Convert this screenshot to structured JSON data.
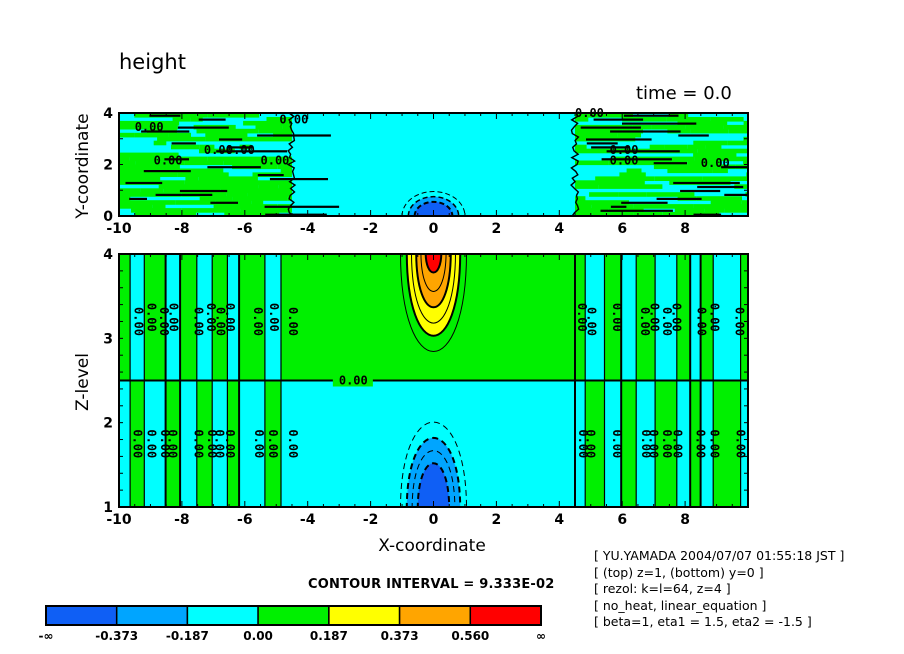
{
  "header": {
    "title": "height",
    "time_label": "time = 0.0"
  },
  "meta_lines": [
    "[ YU.YAMADA 2004/07/07 01:55:18 JST ]",
    "[ (top) z=1, (bottom) y=0 ]",
    "[ rezol: k=l=64, z=4 ]",
    "[ no_heat, linear_equation ]",
    "[ beta=1, eta1 = 1.5, eta2 = -1.5 ]"
  ],
  "contour_interval_label": "CONTOUR INTERVAL = 9.333E-02",
  "colors": {
    "level_neg_inf_to_m0373": "#0f5ff5",
    "level_m0373_to_m0187": "#00a5ff",
    "level_m0187_to_0": "#00ffff",
    "level_0_to_0187": "#00f000",
    "level_0187_to_0373": "#ffff00",
    "level_0373_to_0560": "#ffa500",
    "level_0560_to_inf": "#ff0000"
  },
  "chart_data": [
    {
      "type": "heatmap",
      "subtype": "filled-contour",
      "panel": "top",
      "title": "height",
      "annotation": "time = 0.0",
      "xlabel": "",
      "ylabel": "Y-coordinate",
      "xlim": [
        -10,
        10
      ],
      "ylim": [
        0,
        4
      ],
      "xticks": [
        -10,
        -8,
        -6,
        -4,
        -2,
        0,
        2,
        4,
        6,
        8
      ],
      "xtick_labels": [
        "-10",
        "-8",
        "-6",
        "-4",
        "-2",
        "0",
        "2",
        "4",
        "6",
        "8"
      ],
      "yticks": [
        0,
        2,
        4
      ],
      "ytick_labels": [
        "0",
        "2",
        "4"
      ],
      "contour_labels": [
        "0.00",
        "0.00",
        "0.00",
        "0.00",
        "0.00",
        "0.00",
        "0.00",
        "0.00",
        "0.00",
        "0.00"
      ],
      "features": [
        {
          "kind": "negative-dome",
          "center_x": 0,
          "base_y": 0,
          "min_level": "< -0.373",
          "half_width_x": 1.0,
          "height_y": 0.9
        },
        {
          "kind": "noisy-band",
          "x_range": [
            -10,
            -4.5
          ],
          "levels": [
            "-0.187..0",
            "0..0.187"
          ]
        },
        {
          "kind": "noisy-band",
          "x_range": [
            4.5,
            10
          ],
          "levels": [
            "-0.187..0",
            "0..0.187"
          ]
        },
        {
          "kind": "uniform",
          "x_range": [
            -4.5,
            4.5
          ],
          "level": "-0.187..0"
        }
      ]
    },
    {
      "type": "heatmap",
      "subtype": "filled-contour",
      "panel": "bottom",
      "xlabel": "X-coordinate",
      "ylabel": "Z-level",
      "xlim": [
        -10,
        10
      ],
      "ylim": [
        1,
        4
      ],
      "xticks": [
        -10,
        -8,
        -6,
        -4,
        -2,
        0,
        2,
        4,
        6,
        8
      ],
      "xtick_labels": [
        "-10",
        "-8",
        "-6",
        "-4",
        "-2",
        "0",
        "2",
        "4",
        "6",
        "8"
      ],
      "yticks": [
        1,
        2,
        3,
        4
      ],
      "ytick_labels": [
        "1",
        "2",
        "3",
        "4"
      ],
      "zero_line_z": 2.5,
      "zero_line_label": "0.00",
      "features": [
        {
          "kind": "positive-plume",
          "center_x": 0,
          "top_z": 4,
          "max_level": "> 0.560",
          "levels": [
            0.187,
            0.373,
            0.56
          ]
        },
        {
          "kind": "negative-plume",
          "center_x": 0,
          "base_z": 1,
          "min_level": "< -0.373",
          "levels": [
            -0.187,
            -0.373
          ]
        },
        {
          "kind": "vertical-stripes",
          "x_range": [
            -10,
            -4.5
          ]
        },
        {
          "kind": "vertical-stripes",
          "x_range": [
            4.5,
            10
          ]
        }
      ]
    },
    {
      "type": "colorbar",
      "levels": [
        "-∞",
        "-0.373",
        "-0.187",
        "0.00",
        "0.187",
        "0.373",
        "0.560",
        "∞"
      ],
      "colors": [
        "#0f5ff5",
        "#00a5ff",
        "#00ffff",
        "#00f000",
        "#ffff00",
        "#ffa500",
        "#ff0000"
      ],
      "contour_interval": 0.09333
    }
  ]
}
